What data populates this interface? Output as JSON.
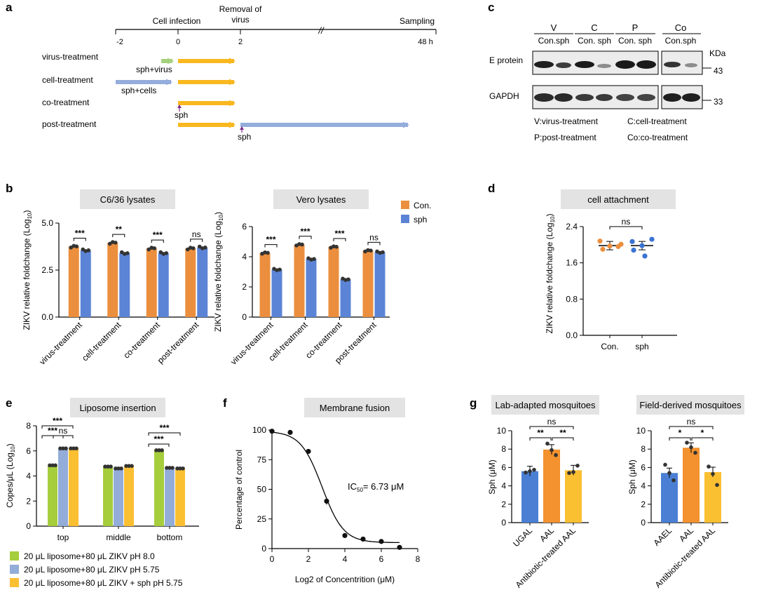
{
  "colors": {
    "orange": "#eb8f3e",
    "blue": "#5b84d6",
    "green": "#a6cd3c",
    "light_blue": "#93acd8",
    "yellow": "#fbbf32",
    "arrow_yellow": "#f9b81f",
    "arrow_blue": "#94addb",
    "arrow_green": "#a5d17d",
    "box_grey": "#e3e3e3",
    "purple": "#7a2b8e"
  },
  "panel_a": {
    "letter": "a",
    "timeline": {
      "ticks": [
        "-2",
        "0",
        "2",
        "48 h"
      ],
      "top_labels": {
        "infection": "Cell infection",
        "removal_1": "Removal of",
        "removal_2": "virus",
        "sampling": "Sampling"
      },
      "break_symbol": "//"
    },
    "rows": [
      {
        "label": "virus-treatment",
        "note": "sph+virus"
      },
      {
        "label": "cell-treatment",
        "note": "sph+cells"
      },
      {
        "label": "co-treatment",
        "note": "sph"
      },
      {
        "label": "post-treatment",
        "note": "sph"
      }
    ]
  },
  "panel_c": {
    "letter": "c",
    "groups": [
      "V",
      "C",
      "P",
      "Co"
    ],
    "lanes": [
      "Con.sph",
      "Con. sph",
      "Con. sph",
      "Con.sph"
    ],
    "rows": [
      "E protein",
      "GAPDH"
    ],
    "kda_label": "KDa",
    "marker_43": "43",
    "marker_33": "33",
    "legend": [
      "V:virus-treatment",
      "C:cell-treatment",
      "P:post-treatment",
      "Co:co-treatment"
    ]
  },
  "panel_b": {
    "letter": "b",
    "legend": [
      "Con.",
      "sph"
    ],
    "charts": [
      {
        "title": "C6/36 lysates",
        "ylabel": "ZIKV relative foldchange (Log",
        "ylabel_sub": "10",
        "ylabel_end": ")",
        "yticks": [
          "0.0",
          "2.5",
          "5.0"
        ],
        "ylim": [
          0,
          5.0
        ],
        "categories": [
          "virus-treatment",
          "cell-treatment",
          "co-treatment",
          "post-treatment"
        ],
        "series": [
          {
            "name": "Con.",
            "values": [
              3.75,
              3.95,
              3.65,
              3.65
            ]
          },
          {
            "name": "sph",
            "values": [
              3.55,
              3.4,
              3.4,
              3.7
            ]
          }
        ],
        "sig": [
          "***",
          "**",
          "***",
          "ns"
        ]
      },
      {
        "title": "Vero lysates",
        "ylabel": "ZIKV relative foldchange (Log",
        "ylabel_sub": "10",
        "ylabel_end": ")",
        "yticks": [
          "0",
          "2",
          "4",
          "6"
        ],
        "ylim": [
          0,
          6
        ],
        "categories": [
          "virus-treatment",
          "cell-treatment",
          "co-treatment",
          "post-treatment"
        ],
        "series": [
          {
            "name": "Con.",
            "values": [
              4.25,
              4.8,
              4.65,
              4.4
            ]
          },
          {
            "name": "sph",
            "values": [
              3.15,
              3.85,
              2.5,
              4.3
            ]
          }
        ],
        "sig": [
          "***",
          "***",
          "***",
          "ns"
        ]
      }
    ]
  },
  "panel_d": {
    "letter": "d",
    "title": "cell attachment",
    "ylabel": "ZIKV relative foldchange (Log",
    "ylabel_sub": "10",
    "ylabel_end": ")",
    "yticks": [
      "0.0",
      "0.8",
      "1.6",
      "2.4"
    ],
    "ylim": [
      0,
      2.4
    ],
    "categories": [
      "Con.",
      "sph"
    ],
    "means": [
      1.98,
      1.98
    ],
    "points": [
      [
        2.08,
        1.97,
        1.9,
        1.96,
        2.01
      ],
      [
        2.07,
        2.12,
        1.98,
        1.88,
        1.75
      ]
    ],
    "sig": "ns"
  },
  "panel_e": {
    "letter": "e",
    "title": "Liposome insertion",
    "ylabel": "Copes/μL (Log",
    "ylabel_sub": "10",
    "ylabel_end": ")",
    "yticks": [
      "0",
      "2",
      "4",
      "6",
      "8"
    ],
    "ylim": [
      0,
      8
    ],
    "categories": [
      "top",
      "middle",
      "bottom"
    ],
    "series": [
      {
        "name": "20 μL liposome+80 μL ZIKV pH 8.0",
        "values": [
          4.85,
          4.75,
          6.05
        ]
      },
      {
        "name": "20 μL liposome+80 μL ZIKV pH 5.75",
        "values": [
          6.2,
          4.6,
          4.65
        ]
      },
      {
        "name": "20 μL liposome+80 μL ZIKV + sph pH 5.75",
        "values": [
          6.2,
          4.8,
          4.6
        ]
      }
    ],
    "sig": [
      "***",
      "***",
      "ns",
      "***",
      "***"
    ]
  },
  "panel_f": {
    "letter": "f",
    "title": "Membrane fusion",
    "ylabel": "Percentage  of control",
    "xlabel": "Log2 of Concentrition (μM)",
    "yticks": [
      "0",
      "25",
      "50",
      "75",
      "100"
    ],
    "xticks": [
      "0",
      "2",
      "4",
      "6",
      "8"
    ],
    "xlim": [
      0,
      8
    ],
    "ylim": [
      0,
      100
    ],
    "x": [
      0,
      1,
      2,
      3,
      4,
      5,
      6,
      7
    ],
    "y": [
      99,
      98,
      82,
      40,
      11,
      8,
      6,
      1
    ],
    "ic50_prefix": "IC",
    "ic50_sub": "50",
    "ic50_value": "= 6.73 μM"
  },
  "panel_g": {
    "letter": "g",
    "charts": [
      {
        "title": "Lab-adapted mosquitoes",
        "ylabel": "Sph (μM)",
        "yticks": [
          "0",
          "2",
          "4",
          "6",
          "8",
          "10"
        ],
        "ylim": [
          0,
          10
        ],
        "categories": [
          "UGAL",
          "AAL",
          "Antibiotic-treated AAL"
        ],
        "values": [
          5.6,
          7.95,
          5.7
        ],
        "points": [
          [
            5.45,
            5.6,
            5.75
          ],
          [
            8.6,
            7.9,
            7.35
          ],
          [
            5.4,
            5.5,
            6.2
          ]
        ],
        "sig": [
          "ns",
          "**",
          "**"
        ]
      },
      {
        "title": "Field-derived mosquitoes",
        "ylabel": "Sph (μM)",
        "yticks": [
          "0",
          "2",
          "4",
          "6",
          "8",
          "10"
        ],
        "ylim": [
          0,
          10
        ],
        "categories": [
          "AAEL",
          "AAL",
          "Antibiotic-treated AAL"
        ],
        "values": [
          5.4,
          8.15,
          5.5
        ],
        "points": [
          [
            6.3,
            5.4,
            4.6
          ],
          [
            8.7,
            8.2,
            7.6
          ],
          [
            6.1,
            5.3,
            4.1
          ]
        ],
        "sig": [
          "ns",
          "*",
          "*"
        ]
      }
    ]
  }
}
